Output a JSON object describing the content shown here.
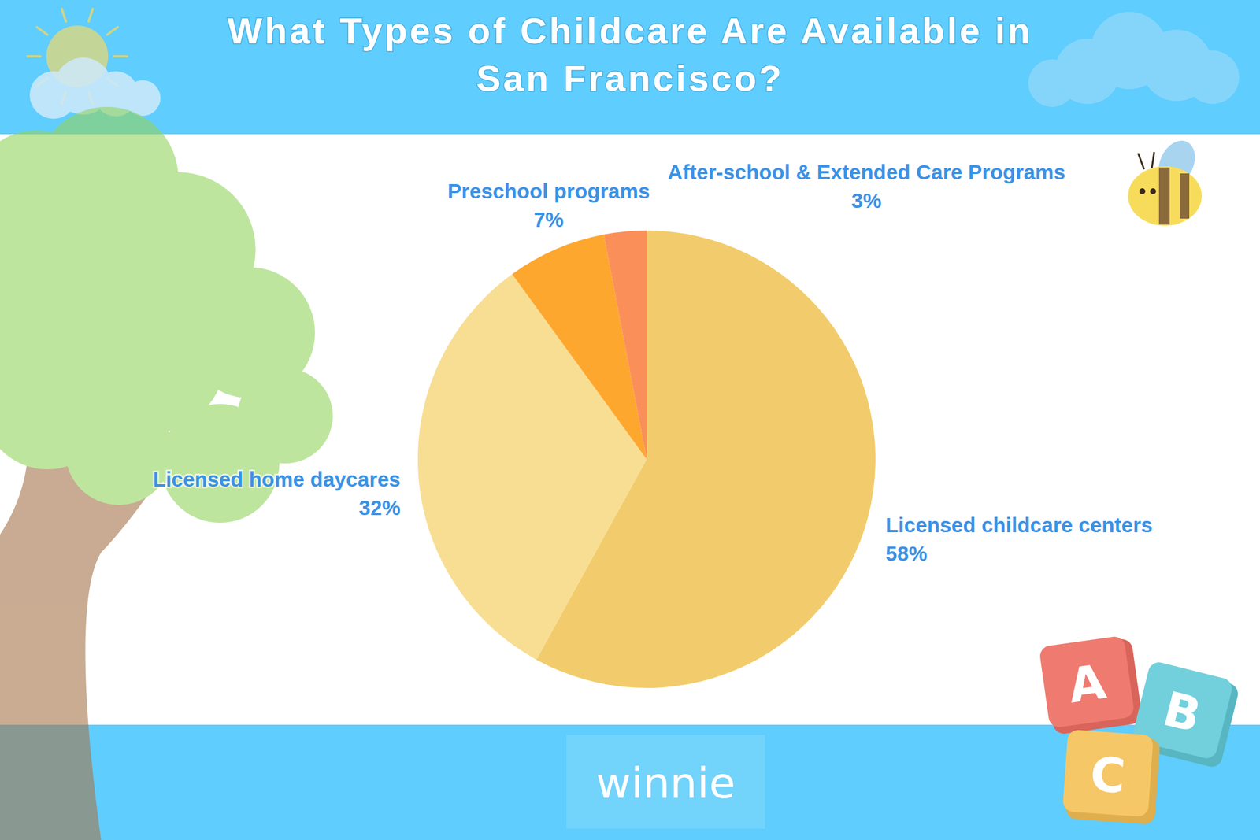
{
  "chart_data": {
    "type": "pie",
    "title": "What Types of Childcare Are Available in San Francisco?",
    "categories": [
      "Licensed childcare centers",
      "Licensed home daycares",
      "Preschool programs",
      "After-school & Extended Care Programs"
    ],
    "values": [
      58,
      32,
      7,
      3
    ],
    "value_labels": [
      "58%",
      "32%",
      "7%",
      "3%"
    ],
    "colors": [
      "#f2cc6c",
      "#f8de93",
      "#fea72f",
      "#fb8f5a"
    ],
    "data_labels": true
  },
  "brand": "winnie",
  "blocks": [
    "A",
    "B",
    "C"
  ]
}
